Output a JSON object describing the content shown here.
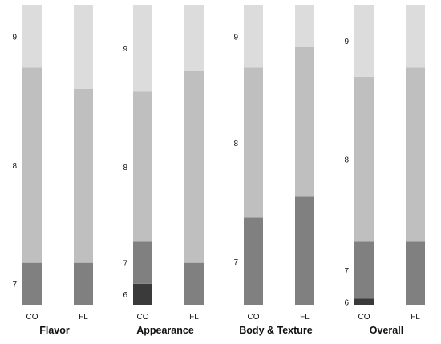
{
  "chart_data": {
    "type": "bar",
    "stacked": true,
    "percent_stacked": true,
    "grid": false,
    "legend": "none",
    "colors": {
      "6": "#3a3a3a",
      "7": "#808080",
      "8": "#bfbfbf",
      "9": "#dcdcdc"
    },
    "panels": [
      {
        "title": "Flavor",
        "categories": [
          "CO",
          "FL"
        ],
        "series": [
          {
            "name": "6",
            "values": [
              0,
              0
            ]
          },
          {
            "name": "7",
            "values": [
              14,
              14
            ]
          },
          {
            "name": "8",
            "values": [
              65,
              58
            ]
          },
          {
            "name": "9",
            "values": [
              21,
              28
            ]
          }
        ]
      },
      {
        "title": "Appearance",
        "categories": [
          "CO",
          "FL"
        ],
        "series": [
          {
            "name": "6",
            "values": [
              7,
              0
            ]
          },
          {
            "name": "7",
            "values": [
              14,
              14
            ]
          },
          {
            "name": "8",
            "values": [
              50,
              64
            ]
          },
          {
            "name": "9",
            "values": [
              29,
              22
            ]
          }
        ]
      },
      {
        "title": "Body & Texture",
        "categories": [
          "CO",
          "FL"
        ],
        "series": [
          {
            "name": "6",
            "values": [
              0,
              0
            ]
          },
          {
            "name": "7",
            "values": [
              29,
              36
            ]
          },
          {
            "name": "8",
            "values": [
              50,
              50
            ]
          },
          {
            "name": "9",
            "values": [
              21,
              14
            ]
          }
        ]
      },
      {
        "title": "Overall",
        "categories": [
          "CO",
          "FL"
        ],
        "series": [
          {
            "name": "6",
            "values": [
              2,
              0
            ]
          },
          {
            "name": "7",
            "values": [
              19,
              21
            ]
          },
          {
            "name": "8",
            "values": [
              55,
              58
            ]
          },
          {
            "name": "9",
            "values": [
              24,
              21
            ]
          }
        ]
      }
    ]
  }
}
